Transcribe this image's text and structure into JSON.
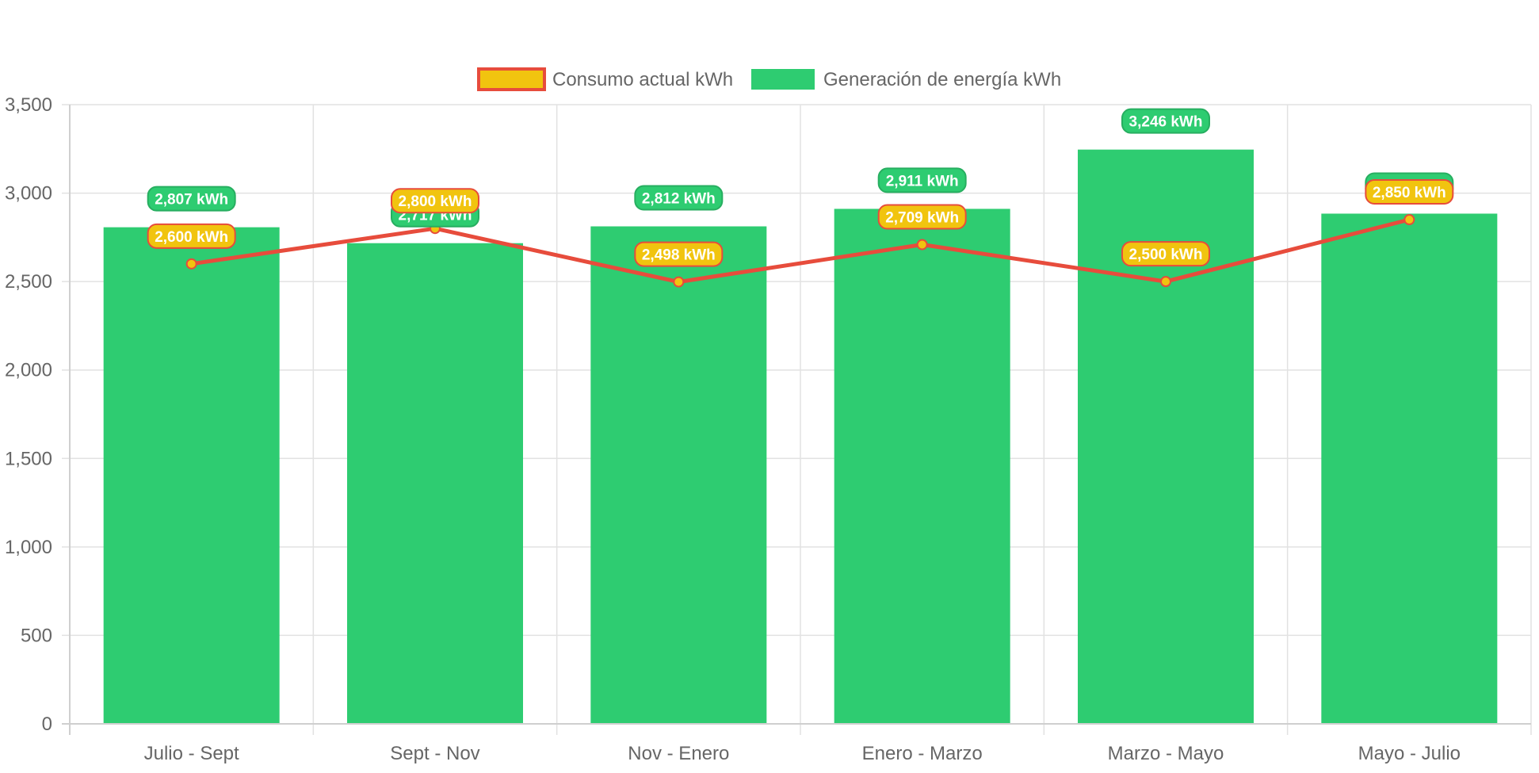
{
  "chart_data": {
    "type": "bar",
    "categories": [
      "Julio - Sept",
      "Sept - Nov",
      "Nov - Enero",
      "Enero - Marzo",
      "Marzo - Mayo",
      "Mayo - Julio"
    ],
    "series": [
      {
        "name": "Consumo actual kWh",
        "type": "line",
        "values": [
          2600,
          2800,
          2498,
          2709,
          2500,
          2850
        ],
        "data_labels": [
          "2,600 kWh",
          "2,800 kWh",
          "2,498 kWh",
          "2,709 kWh",
          "2,500 kWh",
          "2,850 kWh"
        ],
        "color": "#e74c3c",
        "fill_color": "#f1c40f"
      },
      {
        "name": "Generación de energía kWh",
        "type": "bar",
        "values": [
          2807,
          2717,
          2812,
          2911,
          3246,
          2884
        ],
        "data_labels": [
          "2,807 kWh",
          "2,717 kWh",
          "2,812 kWh",
          "2,911 kWh",
          "3,246 kWh",
          "2,884 kWh"
        ],
        "color": "#2ecc71"
      }
    ],
    "y_ticks": [
      "0",
      "500",
      "1,000",
      "1,500",
      "2,000",
      "2,500",
      "3,000",
      "3,500"
    ],
    "ylim": [
      0,
      3500
    ],
    "title": "",
    "xlabel": "",
    "ylabel": "",
    "grid": true,
    "legend_position": "top"
  }
}
